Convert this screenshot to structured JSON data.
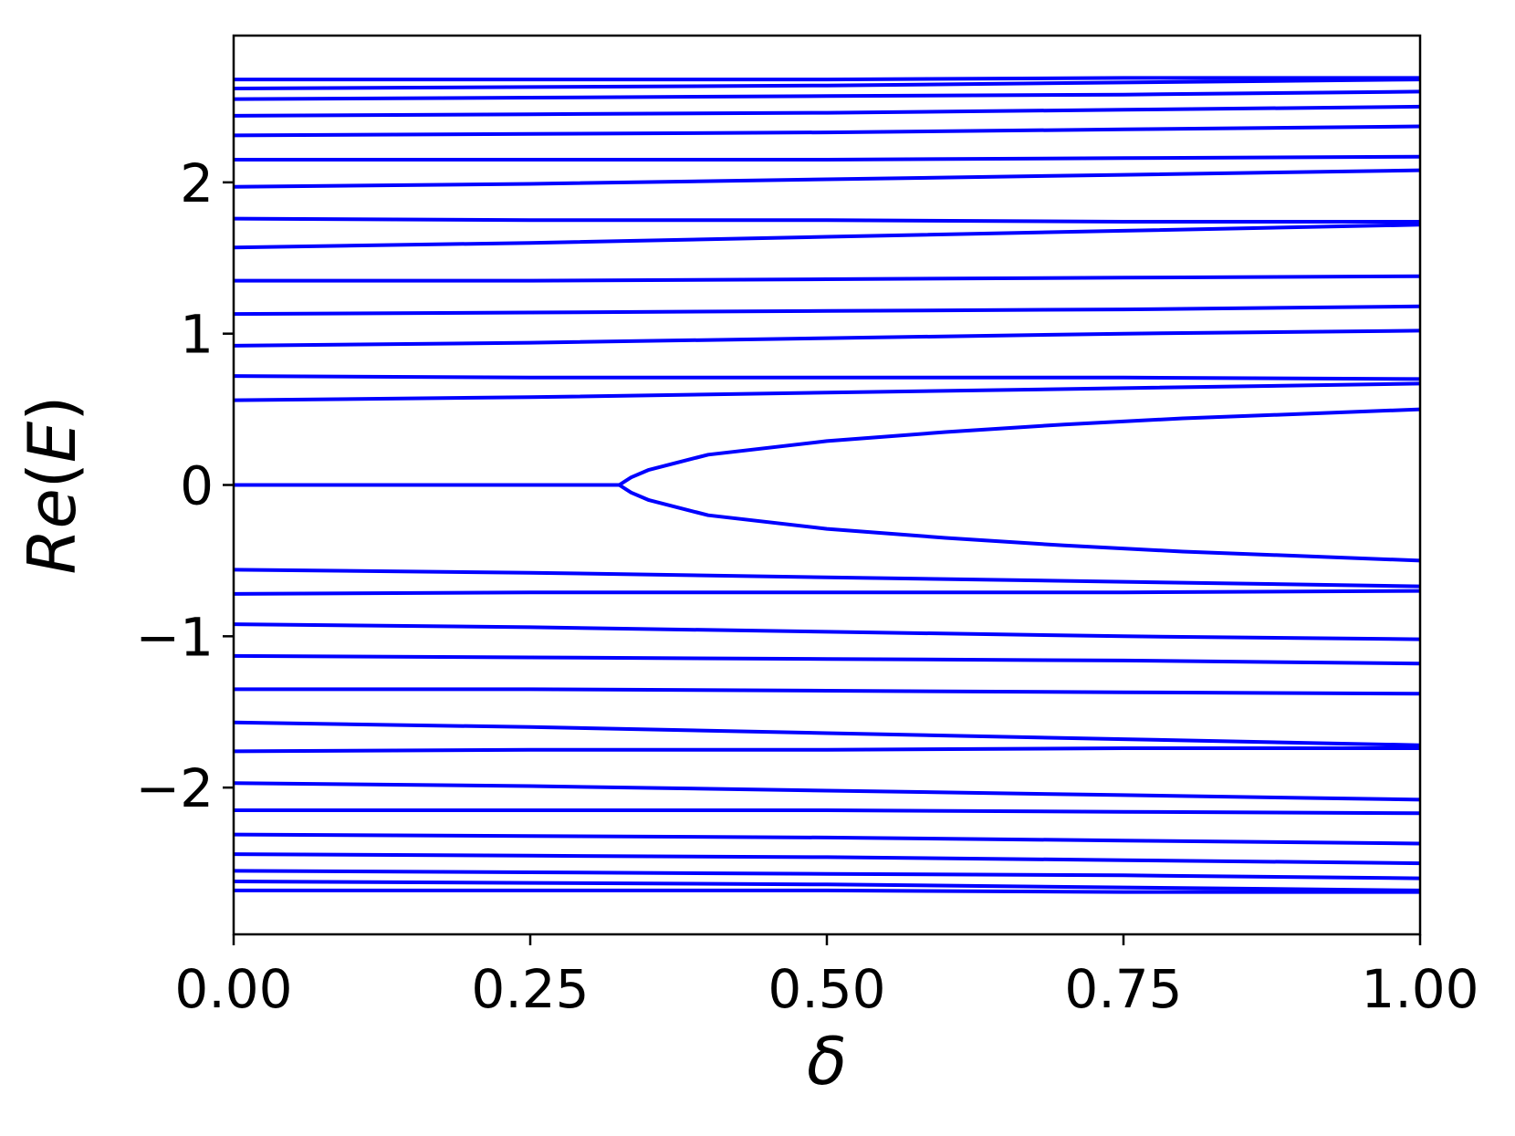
{
  "chart_data": {
    "type": "line",
    "title": "",
    "xlabel": "δ",
    "ylabel": "Re(E)",
    "xlim": [
      0.0,
      1.0
    ],
    "ylim": [
      -2.97,
      2.97
    ],
    "xticks": [
      0.0,
      0.25,
      0.5,
      0.75,
      1.0
    ],
    "xtick_labels": [
      "0.00",
      "0.25",
      "0.50",
      "0.75",
      "1.00"
    ],
    "yticks": [
      -2,
      -1,
      0,
      1,
      2
    ],
    "ytick_labels": [
      "−2",
      "−1",
      "0",
      "1",
      "2"
    ],
    "grid": false,
    "legend": "none",
    "line_color": "#0000ff",
    "x": [
      0.0,
      0.25,
      0.5,
      0.75,
      1.0
    ],
    "series": [
      {
        "values": [
          2.68,
          2.68,
          2.68,
          2.69,
          2.69
        ]
      },
      {
        "values": [
          2.62,
          2.63,
          2.64,
          2.66,
          2.68
        ]
      },
      {
        "values": [
          2.55,
          2.56,
          2.57,
          2.58,
          2.6
        ]
      },
      {
        "values": [
          2.44,
          2.45,
          2.46,
          2.48,
          2.5
        ]
      },
      {
        "values": [
          2.31,
          2.32,
          2.33,
          2.35,
          2.37
        ]
      },
      {
        "values": [
          2.15,
          2.15,
          2.15,
          2.16,
          2.17
        ]
      },
      {
        "values": [
          1.97,
          1.99,
          2.02,
          2.05,
          2.08
        ]
      },
      {
        "values": [
          1.76,
          1.75,
          1.75,
          1.74,
          1.74
        ]
      },
      {
        "values": [
          1.57,
          1.6,
          1.64,
          1.68,
          1.72
        ]
      },
      {
        "values": [
          1.35,
          1.35,
          1.36,
          1.37,
          1.38
        ]
      },
      {
        "values": [
          1.13,
          1.14,
          1.15,
          1.16,
          1.18
        ]
      },
      {
        "values": [
          0.92,
          0.94,
          0.97,
          1.0,
          1.02
        ]
      },
      {
        "values": [
          0.72,
          0.71,
          0.71,
          0.71,
          0.7
        ]
      },
      {
        "values": [
          0.56,
          0.58,
          0.61,
          0.64,
          0.67
        ]
      },
      {
        "x": [
          0.0,
          0.1,
          0.2,
          0.3,
          0.325,
          0.335,
          0.35,
          0.4,
          0.5,
          0.6,
          0.7,
          0.8,
          0.9,
          1.0
        ],
        "values": [
          0.0,
          0.0,
          0.0,
          0.0,
          0.0,
          0.05,
          0.1,
          0.2,
          0.29,
          0.35,
          0.4,
          0.44,
          0.47,
          0.5
        ]
      },
      {
        "x": [
          0.0,
          0.1,
          0.2,
          0.3,
          0.325,
          0.335,
          0.35,
          0.4,
          0.5,
          0.6,
          0.7,
          0.8,
          0.9,
          1.0
        ],
        "values": [
          0.0,
          0.0,
          0.0,
          0.0,
          0.0,
          -0.05,
          -0.1,
          -0.2,
          -0.29,
          -0.35,
          -0.4,
          -0.44,
          -0.47,
          -0.5
        ]
      },
      {
        "values": [
          -0.56,
          -0.58,
          -0.61,
          -0.64,
          -0.67
        ]
      },
      {
        "values": [
          -0.72,
          -0.71,
          -0.71,
          -0.71,
          -0.7
        ]
      },
      {
        "values": [
          -0.92,
          -0.94,
          -0.97,
          -1.0,
          -1.02
        ]
      },
      {
        "values": [
          -1.13,
          -1.14,
          -1.15,
          -1.16,
          -1.18
        ]
      },
      {
        "values": [
          -1.35,
          -1.35,
          -1.36,
          -1.37,
          -1.38
        ]
      },
      {
        "values": [
          -1.57,
          -1.6,
          -1.64,
          -1.68,
          -1.72
        ]
      },
      {
        "values": [
          -1.76,
          -1.75,
          -1.75,
          -1.74,
          -1.74
        ]
      },
      {
        "values": [
          -1.97,
          -1.99,
          -2.02,
          -2.05,
          -2.08
        ]
      },
      {
        "values": [
          -2.15,
          -2.15,
          -2.15,
          -2.16,
          -2.17
        ]
      },
      {
        "values": [
          -2.31,
          -2.32,
          -2.33,
          -2.35,
          -2.37
        ]
      },
      {
        "values": [
          -2.44,
          -2.45,
          -2.46,
          -2.48,
          -2.5
        ]
      },
      {
        "values": [
          -2.55,
          -2.56,
          -2.57,
          -2.58,
          -2.6
        ]
      },
      {
        "values": [
          -2.62,
          -2.63,
          -2.64,
          -2.66,
          -2.68
        ]
      },
      {
        "values": [
          -2.68,
          -2.68,
          -2.68,
          -2.69,
          -2.69
        ]
      }
    ]
  }
}
